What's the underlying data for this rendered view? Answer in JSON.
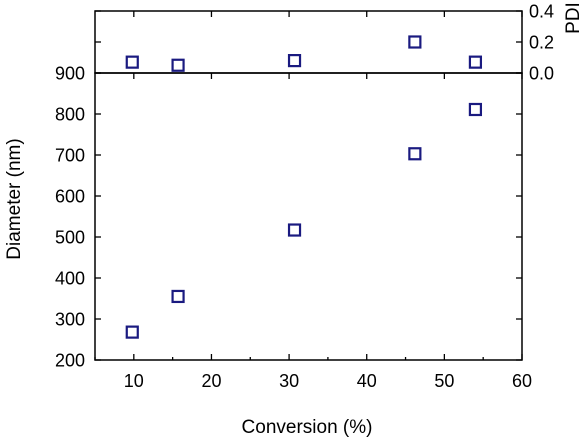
{
  "chart_data": {
    "type": "scatter",
    "x_axis": {
      "label": "Conversion (%)",
      "range": [
        5,
        60
      ],
      "ticks": [
        10,
        20,
        30,
        40,
        50,
        60
      ],
      "tick_labels": [
        "10",
        "20",
        "30",
        "40",
        "50",
        "60"
      ]
    },
    "panels": [
      {
        "id": "pdi",
        "position": "top",
        "y_axis": {
          "label": "PDI",
          "side": "right",
          "range": [
            0.0,
            0.4
          ],
          "ticks": [
            0.0,
            0.2,
            0.4
          ],
          "tick_labels": [
            "0.0",
            "0.2",
            "0.4"
          ]
        },
        "series": [
          {
            "marker": "open-square",
            "color": "#1a1a80",
            "x": [
              9.8,
              15.7,
              30.7,
              46.2,
              54.0
            ],
            "y": [
              0.07,
              0.05,
              0.08,
              0.2,
              0.07
            ]
          }
        ]
      },
      {
        "id": "diameter",
        "position": "bottom",
        "y_axis": {
          "label": "Diameter (nm)",
          "side": "left",
          "range": [
            200,
            900
          ],
          "ticks": [
            200,
            300,
            400,
            500,
            600,
            700,
            800,
            900
          ],
          "tick_labels": [
            "200",
            "300",
            "400",
            "500",
            "600",
            "700",
            "800",
            "900"
          ]
        },
        "series": [
          {
            "marker": "open-square",
            "color": "#1a1a80",
            "x": [
              9.8,
              15.7,
              30.7,
              46.2,
              54.0
            ],
            "y": [
              268,
              355,
              517,
              703,
              811
            ]
          }
        ]
      }
    ],
    "grid": false,
    "legend": "none"
  }
}
